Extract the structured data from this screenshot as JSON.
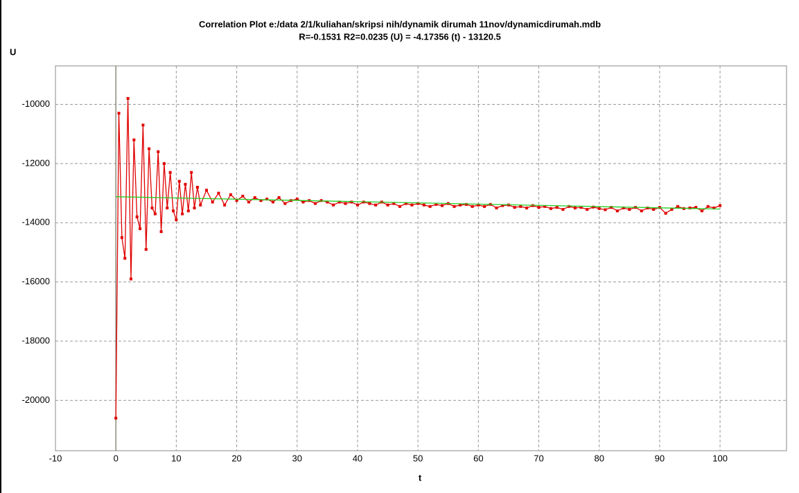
{
  "chart_data": {
    "type": "line",
    "title": "Correlation Plot e:/data 2/1/kuliahan/skripsi nih/dynamik dirumah 11nov/dynamicdirumah.mdb",
    "subtitle": "R=-0.1531 R2=0.0235    (U) = -4.17356 (t) - 13120.5",
    "ylabel": "U",
    "xlabel": "t",
    "xlim": [
      -10,
      111
    ],
    "ylim": [
      -21700,
      -8700
    ],
    "xticks": [
      -10,
      0,
      10,
      20,
      30,
      40,
      50,
      60,
      70,
      80,
      90,
      100
    ],
    "yticks": [
      -20000,
      -18000,
      -16000,
      -14000,
      -12000,
      -10000
    ],
    "grid": true,
    "series": [
      {
        "color": "#e00000",
        "markers": true,
        "x": [
          0,
          0.5,
          1,
          1.5,
          2,
          2.5,
          3,
          3.5,
          4,
          4.5,
          5,
          5.5,
          6,
          6.5,
          7,
          7.5,
          8,
          8.5,
          9,
          9.5,
          10,
          10.5,
          11,
          11.5,
          12,
          12.5,
          13,
          13.5,
          14,
          15,
          16,
          17,
          18,
          19,
          20,
          21,
          22,
          23,
          24,
          25,
          26,
          27,
          28,
          29,
          30,
          31,
          32,
          33,
          34,
          35,
          36,
          37,
          38,
          39,
          40,
          41,
          42,
          43,
          44,
          45,
          46,
          47,
          48,
          49,
          50,
          51,
          52,
          53,
          54,
          55,
          56,
          57,
          58,
          59,
          60,
          61,
          62,
          63,
          64,
          65,
          66,
          67,
          68,
          69,
          70,
          71,
          72,
          73,
          74,
          75,
          76,
          77,
          78,
          79,
          80,
          81,
          82,
          83,
          84,
          85,
          86,
          87,
          88,
          89,
          90,
          91,
          92,
          93,
          94,
          95,
          96,
          97,
          98,
          99,
          100
        ],
        "values": [
          -20600,
          -10300,
          -14500,
          -15200,
          -9800,
          -15900,
          -11200,
          -13800,
          -14200,
          -10700,
          -14900,
          -11500,
          -13500,
          -13700,
          -11600,
          -14300,
          -12000,
          -13500,
          -12300,
          -13600,
          -13900,
          -12600,
          -13700,
          -12700,
          -13600,
          -12300,
          -13500,
          -12800,
          -13400,
          -12900,
          -13300,
          -13000,
          -13400,
          -13050,
          -13250,
          -13100,
          -13300,
          -13150,
          -13250,
          -13200,
          -13300,
          -13150,
          -13350,
          -13250,
          -13200,
          -13300,
          -13250,
          -13350,
          -13250,
          -13300,
          -13400,
          -13300,
          -13350,
          -13300,
          -13400,
          -13300,
          -13350,
          -13400,
          -13300,
          -13400,
          -13350,
          -13450,
          -13350,
          -13400,
          -13350,
          -13400,
          -13450,
          -13380,
          -13420,
          -13350,
          -13450,
          -13400,
          -13380,
          -13450,
          -13400,
          -13450,
          -13380,
          -13500,
          -13420,
          -13400,
          -13480,
          -13450,
          -13500,
          -13420,
          -13480,
          -13450,
          -13520,
          -13480,
          -13550,
          -13450,
          -13500,
          -13480,
          -13550,
          -13470,
          -13520,
          -13560,
          -13480,
          -13600,
          -13500,
          -13550,
          -13480,
          -13600,
          -13500,
          -13550,
          -13480,
          -13680,
          -13550,
          -13450,
          -13520,
          -13500,
          -13480,
          -13600,
          -13450,
          -13500,
          -13420
        ]
      },
      {
        "color": "#22cc22",
        "markers": false,
        "x": [
          0,
          100
        ],
        "values": [
          -13120.5,
          -13537.9
        ]
      }
    ]
  }
}
